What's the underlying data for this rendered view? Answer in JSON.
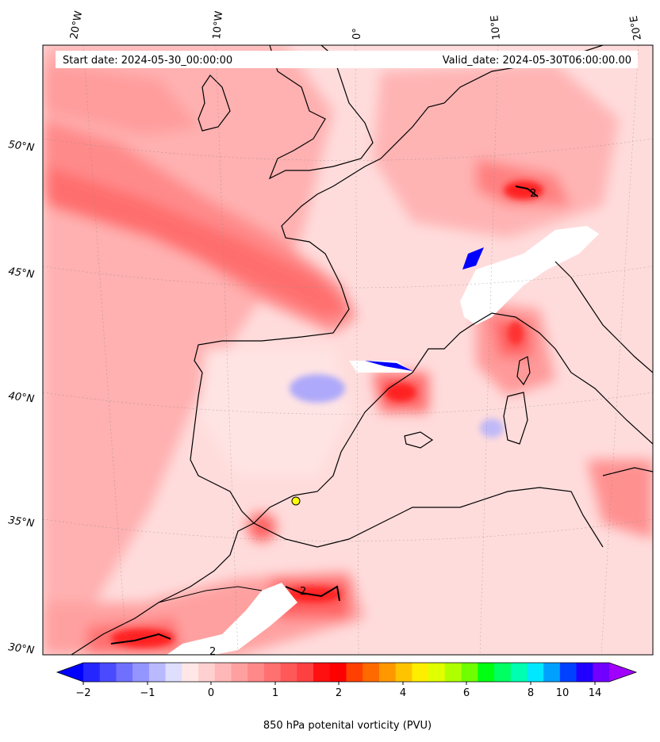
{
  "header": {
    "start_date": "Start date: 2024-05-30_00:00:00",
    "valid_date": "Valid_date: 2024-05-30T06:00:00.00"
  },
  "axes": {
    "lon_labels": [
      "20°W",
      "10°W",
      "0°",
      "10°E",
      "20°E"
    ],
    "lat_labels": [
      "50°N",
      "45°N",
      "40°N",
      "35°N",
      "30°N"
    ]
  },
  "colorbar": {
    "label": "850 hPa potenital vorticity (PVU)",
    "tick_labels": [
      "−2",
      "−1",
      "0",
      "1",
      "2",
      "4",
      "6",
      "8",
      "10",
      "14"
    ],
    "colors": [
      "#0000ff",
      "#2525ff",
      "#4a4aff",
      "#7070ff",
      "#9595ff",
      "#b9b9ff",
      "#dedeff",
      "#ffe7e7",
      "#ffd0d0",
      "#ffb8b8",
      "#ffa0a0",
      "#ff8888",
      "#ff7070",
      "#ff5858",
      "#ff4040",
      "#ff1010",
      "#ff0000",
      "#ff4000",
      "#ff6a00",
      "#ff9800",
      "#ffc400",
      "#ffee00",
      "#e0ff00",
      "#b0ff00",
      "#70ff00",
      "#00ff10",
      "#00ff60",
      "#00ffb0",
      "#00e8ff",
      "#00a0ff",
      "#0040ff",
      "#2000ff",
      "#7000ff",
      "#a000ff"
    ],
    "contour_label": "2"
  }
}
